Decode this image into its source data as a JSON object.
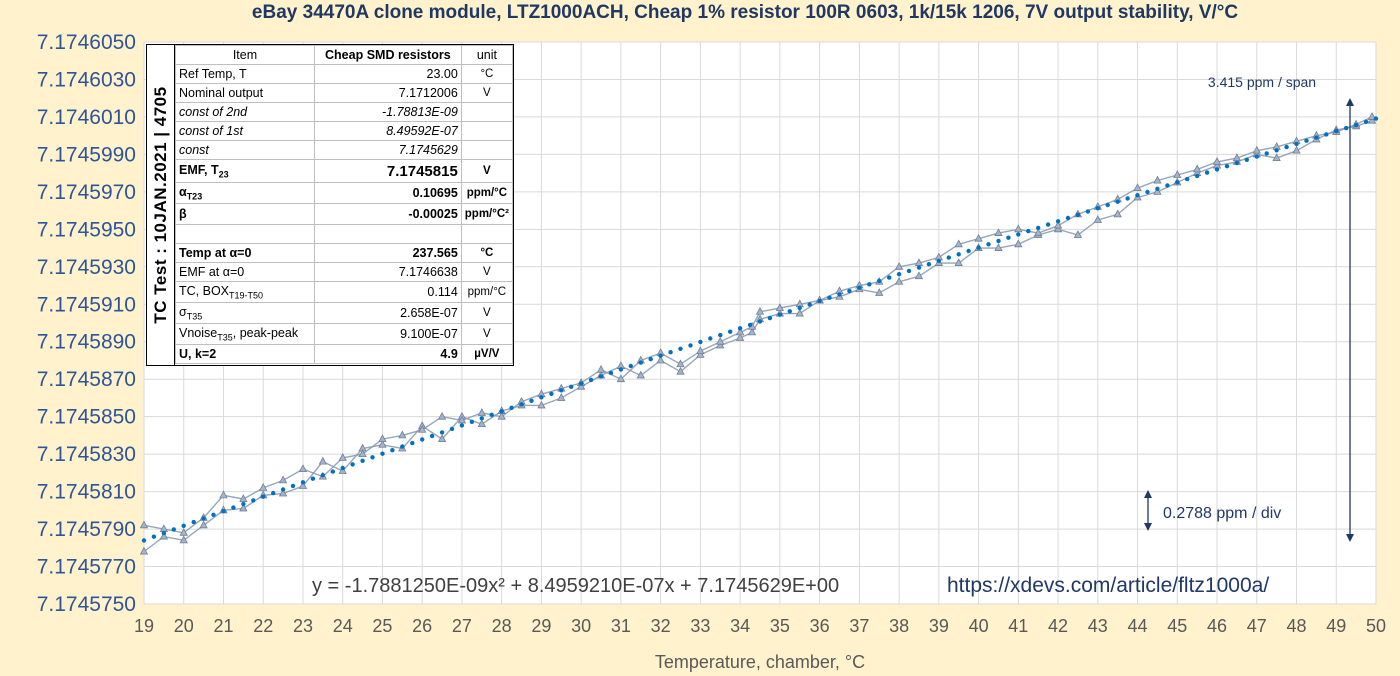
{
  "title": "eBay 34470A clone module, LTZ1000ACH, Cheap 1% resistor 100R 0603, 1k/15k 1206,  7V output stability,  V/°C",
  "side_label": "TC Test : 10JAN.2021 | 4705",
  "table": {
    "headers": [
      "Item",
      "Cheap SMD resistors",
      "unit"
    ],
    "rows": [
      {
        "label": "Ref Temp, T",
        "value": "23.00",
        "unit": "°C",
        "style": "normal"
      },
      {
        "label": "Nominal output",
        "value": "7.1712006",
        "unit": "V",
        "style": "normal"
      },
      {
        "label": "const of 2nd",
        "value": "-1.78813E-09",
        "unit": "",
        "style": "italic"
      },
      {
        "label": "const of 1st",
        "value": "8.49592E-07",
        "unit": "",
        "style": "italic"
      },
      {
        "label": "const",
        "value": "7.1745629",
        "unit": "",
        "style": "italic"
      },
      {
        "label": "EMF, T",
        "sub": "23",
        "value": "7.1745815",
        "unit": "V",
        "style": "bold-emf"
      },
      {
        "label": "α",
        "sub": "T23",
        "value": "0.10695",
        "unit": "ppm/°C",
        "style": "bold"
      },
      {
        "label": "β",
        "value": "-0.00025",
        "unit": "ppm/°C²",
        "style": "bold"
      },
      {
        "label": "",
        "value": "",
        "unit": "",
        "style": "normal"
      },
      {
        "label": "Temp at α=0",
        "value": "237.565",
        "unit": "°C",
        "style": "bold"
      },
      {
        "label": "EMF at α=0",
        "value": "7.1746638",
        "unit": "V",
        "style": "normal"
      },
      {
        "label": "TC, BOX",
        "sub": "T19-T50",
        "value": "0.114",
        "unit": "ppm/°C",
        "style": "normal"
      },
      {
        "label": "σ",
        "sub": "T35",
        "value": "2.658E-07",
        "unit": "V",
        "style": "normal"
      },
      {
        "label": "Vnoise",
        "sub": "T35",
        "label_suffix": ", peak-peak",
        "value": "9.100E-07",
        "unit": "V",
        "style": "normal"
      },
      {
        "label": "U, k=2",
        "value": "4.9",
        "unit": "µV/V",
        "style": "bold"
      }
    ]
  },
  "equation": "y = -1.7881250E-09x² + 8.4959210E-07x + 7.1745629E+00",
  "url": "https://xdevs.com/article/fltz1000a/",
  "annotations": {
    "span_label": "3.415 ppm / span",
    "div_label": "0.2788 ppm / div"
  },
  "colors": {
    "background": "#fff2cc",
    "plot_area": "#ffffff",
    "measured_series": "#8497b0",
    "trend_line": "#0070c0",
    "tick_text_y": "#2f5597",
    "title": "#1f3864"
  },
  "chart_data": {
    "type": "line",
    "title": "eBay 34470A clone module, LTZ1000ACH, Cheap 1% resistor 100R 0603, 1k/15k 1206,  7V output stability,  V/°C",
    "xlabel": "Temperature, chamber, °C",
    "ylabel": "",
    "xlim": [
      19,
      50
    ],
    "ylim": [
      7.174575,
      7.174605
    ],
    "x_ticks": [
      19,
      20,
      21,
      22,
      23,
      24,
      25,
      26,
      27,
      28,
      29,
      30,
      31,
      32,
      33,
      34,
      35,
      36,
      37,
      38,
      39,
      40,
      41,
      42,
      43,
      44,
      45,
      46,
      47,
      48,
      49,
      50
    ],
    "y_ticks": [
      "7.1745750",
      "7.1745770",
      "7.1745790",
      "7.1745810",
      "7.1745830",
      "7.1745850",
      "7.1745870",
      "7.1745890",
      "7.1745910",
      "7.1745930",
      "7.1745950",
      "7.1745970",
      "7.1745990",
      "7.1746010",
      "7.1746030",
      "7.1746050"
    ],
    "grid": true,
    "series": [
      {
        "marker": "triangle",
        "style": "line-with-markers",
        "x": [
          19.0,
          19.5,
          20.0,
          20.5,
          21.0,
          21.5,
          22.0,
          22.5,
          23.0,
          23.5,
          24.0,
          24.5,
          25.0,
          25.5,
          26.0,
          26.5,
          27.0,
          27.5,
          28.0,
          28.5,
          29.0,
          29.5,
          30.0,
          30.5,
          31.0,
          31.5,
          32.0,
          32.5,
          33.0,
          33.5,
          34.0,
          34.3,
          34.5,
          35.0,
          35.5,
          36.0,
          36.5,
          37.0,
          37.5,
          38.0,
          38.5,
          39.0,
          39.5,
          40.0,
          40.5,
          41.0,
          41.5,
          42.0,
          42.5,
          43.0,
          43.5,
          44.0,
          44.5,
          45.0,
          45.5,
          46.0,
          46.5,
          47.0,
          47.5,
          48.0,
          48.5,
          49.0,
          49.5,
          49.9
        ],
        "y": [
          7.1745778,
          7.1745786,
          7.1745784,
          7.1745792,
          7.17458,
          7.1745801,
          7.1745808,
          7.1745809,
          7.1745813,
          7.1745826,
          7.1745821,
          7.1745833,
          7.1745835,
          7.1745833,
          7.1745845,
          7.1745838,
          7.174585,
          7.1745846,
          7.1745853,
          7.1745856,
          7.1745856,
          7.174586,
          7.1745866,
          7.1745872,
          7.1745877,
          7.1745872,
          7.174588,
          7.1745874,
          7.1745883,
          7.1745888,
          7.1745892,
          7.1745895,
          7.1745902,
          7.1745905,
          7.1745905,
          7.1745912,
          7.1745914,
          7.1745918,
          7.1745916,
          7.1745922,
          7.1745925,
          7.1745932,
          7.1745932,
          7.174594,
          7.174594,
          7.1745942,
          7.1745947,
          7.174595,
          7.1745947,
          7.1745955,
          7.1745958,
          7.1745967,
          7.174597,
          7.1745975,
          7.174598,
          7.1745984,
          7.1745986,
          7.174599,
          7.1745988,
          7.1745992,
          7.1745998,
          7.1746003,
          7.1746005,
          7.1746008
        ]
      },
      {
        "marker": "triangle",
        "style": "line-with-markers",
        "x": [
          19.0,
          19.5,
          20.0,
          20.5,
          21.0,
          21.5,
          22.0,
          22.5,
          23.0,
          23.5,
          24.0,
          24.5,
          25.0,
          25.5,
          26.0,
          26.5,
          27.0,
          27.5,
          28.0,
          28.5,
          29.0,
          29.5,
          30.0,
          30.5,
          31.0,
          31.5,
          32.0,
          32.5,
          33.0,
          33.5,
          34.0,
          34.3,
          34.5,
          35.0,
          35.5,
          36.0,
          36.5,
          37.0,
          37.5,
          38.0,
          38.5,
          39.0,
          39.5,
          40.0,
          40.5,
          41.0,
          41.5,
          42.0,
          42.5,
          43.0,
          43.5,
          44.0,
          44.5,
          45.0,
          45.5,
          46.0,
          46.5,
          47.0,
          47.5,
          48.0,
          48.5,
          49.0,
          49.5,
          49.9
        ],
        "y": [
          7.1745792,
          7.174579,
          7.1745788,
          7.1745796,
          7.1745808,
          7.1745806,
          7.1745812,
          7.1745816,
          7.1745822,
          7.1745818,
          7.1745828,
          7.174583,
          7.1745838,
          7.174584,
          7.1745843,
          7.174585,
          7.1745848,
          7.1745852,
          7.174585,
          7.1745858,
          7.1745862,
          7.1745865,
          7.1745868,
          7.1745875,
          7.174587,
          7.174588,
          7.1745884,
          7.1745878,
          7.1745885,
          7.174589,
          7.1745895,
          7.1745898,
          7.1745906,
          7.1745908,
          7.174591,
          7.1745912,
          7.1745917,
          7.174592,
          7.1745922,
          7.174593,
          7.1745932,
          7.1745935,
          7.1745942,
          7.1745945,
          7.1745948,
          7.174595,
          7.1745948,
          7.1745952,
          7.1745958,
          7.1745962,
          7.1745966,
          7.1745972,
          7.1745976,
          7.1745979,
          7.1745982,
          7.1745986,
          7.1745988,
          7.1745992,
          7.1745994,
          7.1745997,
          7.1746,
          7.1746002,
          7.1746006,
          7.174601
        ]
      },
      {
        "name": "Trend",
        "style": "dotted",
        "type": "polynomial",
        "equation": "y = -1.7881250E-09x² + 8.4959210E-07x + 7.1745629E+00",
        "coefficients": [
          -1.788125e-09,
          8.495921e-07,
          7.1745629
        ]
      }
    ]
  }
}
